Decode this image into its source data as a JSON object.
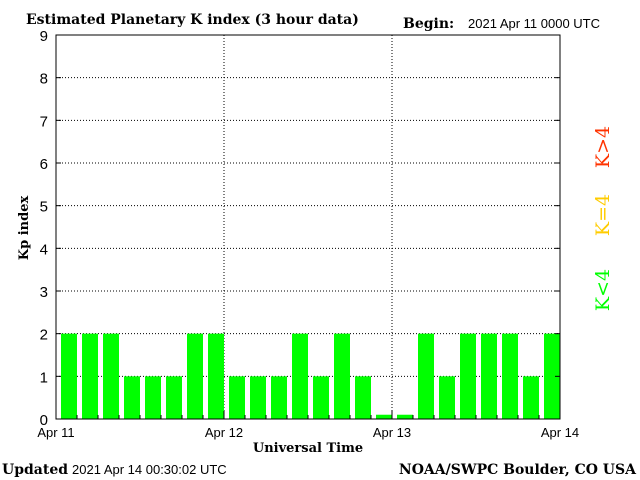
{
  "header": {
    "title": "Estimated Planetary K index (3 hour data)",
    "begin_label": "Begin:",
    "begin_value": "2021 Apr 11 0000 UTC"
  },
  "footer": {
    "updated_label": "Updated",
    "updated_value": "2021 Apr 14 00:30:02 UTC",
    "source": "NOAA/SWPC Boulder, CO USA"
  },
  "legend": {
    "above": "K>4",
    "equal": "K=4",
    "below": "K<4"
  },
  "colors": {
    "below": "#00ff00",
    "equal": "#ffcc00",
    "above": "#ff3300",
    "axis": "#000000",
    "grid": "#000000"
  },
  "chart_data": {
    "type": "bar",
    "title": "Estimated Planetary K index (3 hour data)",
    "xlabel": "Universal Time",
    "ylabel": "Kp index",
    "ylim": [
      0,
      9
    ],
    "yticks": [
      "0",
      "1",
      "2",
      "3",
      "4",
      "5",
      "6",
      "7",
      "8",
      "9"
    ],
    "xtick_labels": [
      "Apr 11",
      "Apr 12",
      "Apr 13",
      "Apr 14"
    ],
    "grid": true,
    "interval_hours": 3,
    "values": [
      2,
      2,
      2,
      1,
      1,
      1,
      2,
      2,
      1,
      1,
      1,
      2,
      1,
      2,
      1,
      0.1,
      0.1,
      2,
      1,
      2,
      2,
      2,
      1,
      2
    ]
  }
}
